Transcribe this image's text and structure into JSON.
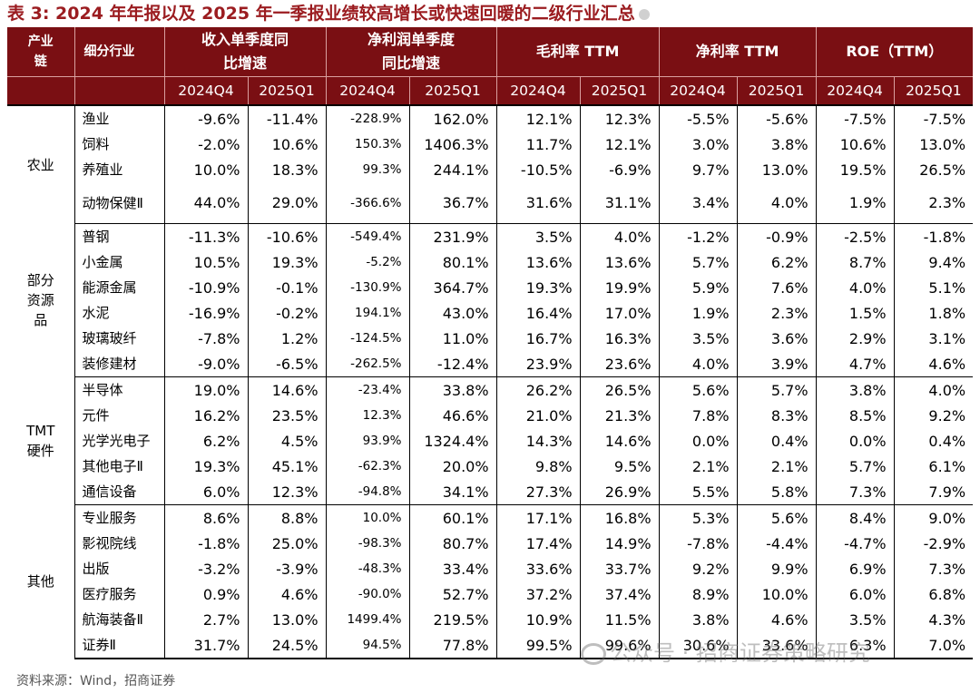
{
  "title": "表 3: 2024 年年报以及 2025 年一季报业绩较高增长或快速回暖的二级行业汇总",
  "header": {
    "chain": "产业链",
    "sub": "细分行业",
    "groups": [
      "收入单季度同比增速",
      "净利润单季度同比增速",
      "毛利率 TTM",
      "净利率 TTM",
      "ROE（TTM）"
    ],
    "quarters": [
      "2024Q4",
      "2025Q1"
    ]
  },
  "sections": [
    {
      "category": "农业",
      "rows": [
        {
          "name": "渔业",
          "values": [
            "-9.6%",
            "-11.4%",
            "-228.9%",
            "162.0%",
            "12.1%",
            "12.3%",
            "-5.5%",
            "-5.6%",
            "-7.5%",
            "-7.5%"
          ]
        },
        {
          "name": "饲料",
          "values": [
            "-2.0%",
            "10.6%",
            "150.3%",
            "1406.3%",
            "11.7%",
            "12.1%",
            "3.0%",
            "3.8%",
            "10.6%",
            "13.0%"
          ]
        },
        {
          "name": "养殖业",
          "values": [
            "10.0%",
            "18.3%",
            "99.3%",
            "244.1%",
            "-10.5%",
            "-6.9%",
            "9.7%",
            "13.0%",
            "19.5%",
            "26.5%"
          ]
        },
        {
          "name": "动物保健Ⅱ",
          "values": [
            "44.0%",
            "29.0%",
            "-366.6%",
            "36.7%",
            "31.6%",
            "31.1%",
            "3.4%",
            "4.0%",
            "1.9%",
            "2.3%"
          ]
        }
      ]
    },
    {
      "category": "部分资源品",
      "rows": [
        {
          "name": "普钢",
          "values": [
            "-11.3%",
            "-10.6%",
            "-549.4%",
            "231.9%",
            "3.5%",
            "4.0%",
            "-1.2%",
            "-0.9%",
            "-2.5%",
            "-1.8%"
          ]
        },
        {
          "name": "小金属",
          "values": [
            "10.5%",
            "19.3%",
            "-5.2%",
            "80.1%",
            "13.6%",
            "13.6%",
            "5.7%",
            "6.2%",
            "8.7%",
            "9.4%"
          ]
        },
        {
          "name": "能源金属",
          "values": [
            "-10.9%",
            "-0.1%",
            "-130.9%",
            "364.7%",
            "19.3%",
            "19.9%",
            "5.9%",
            "7.6%",
            "4.0%",
            "5.1%"
          ]
        },
        {
          "name": "水泥",
          "values": [
            "-16.9%",
            "-0.2%",
            "194.1%",
            "43.0%",
            "16.4%",
            "17.0%",
            "1.9%",
            "2.3%",
            "1.5%",
            "1.8%"
          ]
        },
        {
          "name": "玻璃玻纤",
          "values": [
            "-7.8%",
            "1.2%",
            "-124.5%",
            "11.0%",
            "16.7%",
            "16.3%",
            "3.5%",
            "3.6%",
            "2.9%",
            "3.1%"
          ]
        },
        {
          "name": "装修建材",
          "values": [
            "-9.0%",
            "-6.5%",
            "-262.5%",
            "-12.4%",
            "23.9%",
            "23.6%",
            "4.0%",
            "3.9%",
            "4.7%",
            "4.6%"
          ]
        }
      ]
    },
    {
      "category": "TMT硬件",
      "rows": [
        {
          "name": "半导体",
          "values": [
            "19.0%",
            "14.6%",
            "-23.4%",
            "33.8%",
            "26.2%",
            "26.5%",
            "5.6%",
            "5.7%",
            "3.8%",
            "4.0%"
          ]
        },
        {
          "name": "元件",
          "values": [
            "16.2%",
            "23.5%",
            "12.3%",
            "46.6%",
            "21.0%",
            "21.3%",
            "7.8%",
            "8.3%",
            "8.5%",
            "9.2%"
          ]
        },
        {
          "name": "光学光电子",
          "values": [
            "6.2%",
            "4.5%",
            "93.9%",
            "1324.4%",
            "14.3%",
            "14.6%",
            "0.0%",
            "0.4%",
            "0.0%",
            "0.4%"
          ]
        },
        {
          "name": "其他电子Ⅱ",
          "values": [
            "19.3%",
            "45.1%",
            "-62.3%",
            "20.0%",
            "9.8%",
            "9.5%",
            "2.1%",
            "2.1%",
            "5.7%",
            "6.1%"
          ]
        },
        {
          "name": "通信设备",
          "values": [
            "6.0%",
            "12.3%",
            "-94.8%",
            "34.1%",
            "27.3%",
            "26.9%",
            "5.5%",
            "5.8%",
            "7.3%",
            "7.9%"
          ]
        }
      ]
    },
    {
      "category": "其他",
      "rows": [
        {
          "name": "专业服务",
          "values": [
            "8.6%",
            "8.8%",
            "10.0%",
            "60.1%",
            "17.1%",
            "16.8%",
            "5.3%",
            "5.6%",
            "8.4%",
            "9.0%"
          ]
        },
        {
          "name": "影视院线",
          "values": [
            "-1.8%",
            "25.0%",
            "-98.3%",
            "80.7%",
            "17.4%",
            "14.9%",
            "-7.8%",
            "-4.4%",
            "-4.7%",
            "-2.9%"
          ]
        },
        {
          "name": "出版",
          "values": [
            "-3.2%",
            "-3.9%",
            "-48.3%",
            "33.4%",
            "33.6%",
            "33.7%",
            "9.2%",
            "9.9%",
            "6.9%",
            "7.3%"
          ]
        },
        {
          "name": "医疗服务",
          "values": [
            "0.9%",
            "4.6%",
            "-90.0%",
            "52.7%",
            "37.2%",
            "37.4%",
            "8.9%",
            "10.0%",
            "6.0%",
            "6.8%"
          ]
        },
        {
          "name": "航海装备Ⅱ",
          "values": [
            "2.7%",
            "13.0%",
            "1499.4%",
            "219.5%",
            "10.9%",
            "11.5%",
            "3.8%",
            "4.6%",
            "3.5%",
            "4.3%"
          ]
        },
        {
          "name": "证券Ⅱ",
          "values": [
            "31.7%",
            "24.5%",
            "94.5%",
            "77.8%",
            "99.5%",
            "99.6%",
            "30.6%",
            "33.6%",
            "6.3%",
            "7.0%"
          ]
        }
      ]
    }
  ],
  "source": "资料来源：Wind，招商证券",
  "watermark": "公众号 · 招商证券策略研究",
  "colors": {
    "header_bg": "#7a0f13",
    "title": "#9b1c20"
  }
}
